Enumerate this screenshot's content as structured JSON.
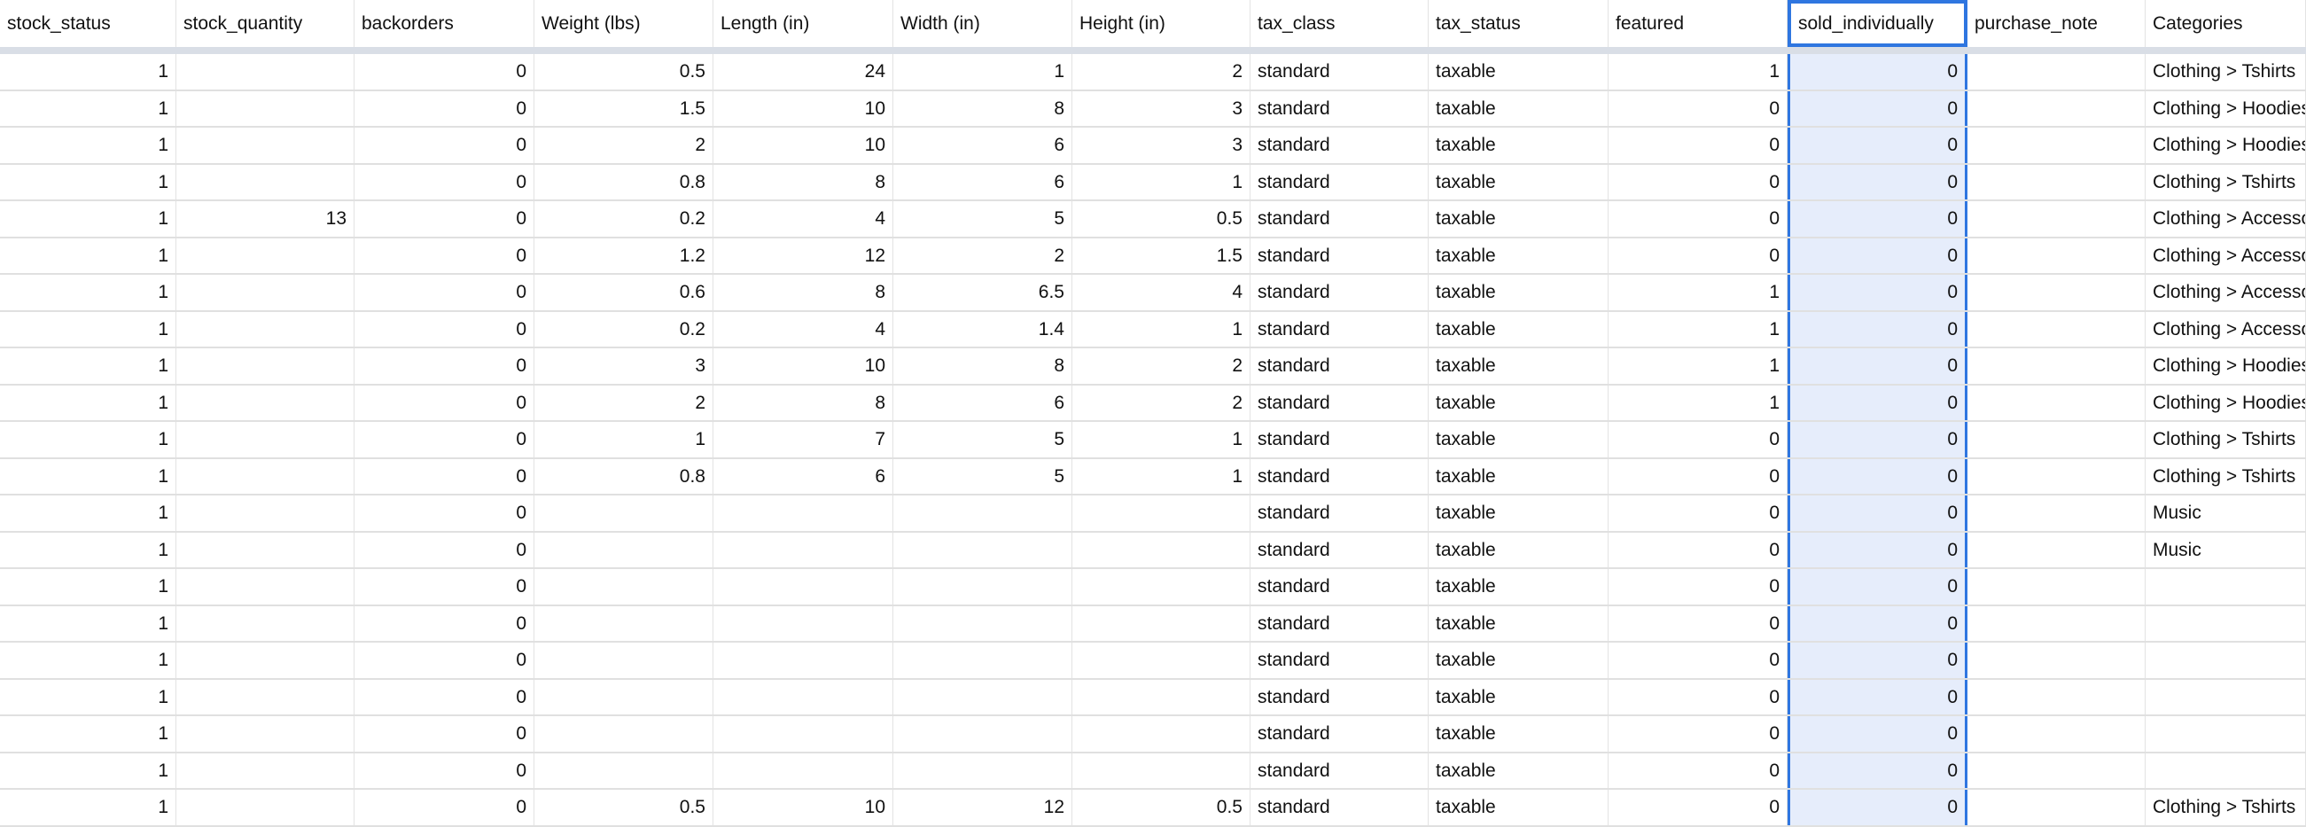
{
  "columns": [
    "stock_status",
    "stock_quantity",
    "backorders",
    "Weight (lbs)",
    "Length (in)",
    "Width (in)",
    "Height (in)",
    "tax_class",
    "tax_status",
    "featured",
    "sold_individually",
    "purchase_note",
    "Categories"
  ],
  "selected_column": "sold_individually",
  "accent_color": "#2f76e0",
  "rows": [
    [
      "1",
      "",
      "0",
      "0.5",
      "24",
      "1",
      "2",
      "standard",
      "taxable",
      "1",
      "0",
      "",
      "Clothing > Tshirts"
    ],
    [
      "1",
      "",
      "0",
      "1.5",
      "10",
      "8",
      "3",
      "standard",
      "taxable",
      "0",
      "0",
      "",
      "Clothing > Hoodies"
    ],
    [
      "1",
      "",
      "0",
      "2",
      "10",
      "6",
      "3",
      "standard",
      "taxable",
      "0",
      "0",
      "",
      "Clothing > Hoodies"
    ],
    [
      "1",
      "",
      "0",
      "0.8",
      "8",
      "6",
      "1",
      "standard",
      "taxable",
      "0",
      "0",
      "",
      "Clothing > Tshirts"
    ],
    [
      "1",
      "13",
      "0",
      "0.2",
      "4",
      "5",
      "0.5",
      "standard",
      "taxable",
      "0",
      "0",
      "",
      "Clothing > Accessories"
    ],
    [
      "1",
      "",
      "0",
      "1.2",
      "12",
      "2",
      "1.5",
      "standard",
      "taxable",
      "0",
      "0",
      "",
      "Clothing > Accessories"
    ],
    [
      "1",
      "",
      "0",
      "0.6",
      "8",
      "6.5",
      "4",
      "standard",
      "taxable",
      "1",
      "0",
      "",
      "Clothing > Accessories"
    ],
    [
      "1",
      "",
      "0",
      "0.2",
      "4",
      "1.4",
      "1",
      "standard",
      "taxable",
      "1",
      "0",
      "",
      "Clothing > Accessories"
    ],
    [
      "1",
      "",
      "0",
      "3",
      "10",
      "8",
      "2",
      "standard",
      "taxable",
      "1",
      "0",
      "",
      "Clothing > Hoodies"
    ],
    [
      "1",
      "",
      "0",
      "2",
      "8",
      "6",
      "2",
      "standard",
      "taxable",
      "1",
      "0",
      "",
      "Clothing > Hoodies"
    ],
    [
      "1",
      "",
      "0",
      "1",
      "7",
      "5",
      "1",
      "standard",
      "taxable",
      "0",
      "0",
      "",
      "Clothing > Tshirts"
    ],
    [
      "1",
      "",
      "0",
      "0.8",
      "6",
      "5",
      "1",
      "standard",
      "taxable",
      "0",
      "0",
      "",
      "Clothing > Tshirts"
    ],
    [
      "1",
      "",
      "0",
      "",
      "",
      "",
      "",
      "standard",
      "taxable",
      "0",
      "0",
      "",
      "Music"
    ],
    [
      "1",
      "",
      "0",
      "",
      "",
      "",
      "",
      "standard",
      "taxable",
      "0",
      "0",
      "",
      "Music"
    ],
    [
      "1",
      "",
      "0",
      "",
      "",
      "",
      "",
      "standard",
      "taxable",
      "0",
      "0",
      "",
      ""
    ],
    [
      "1",
      "",
      "0",
      "",
      "",
      "",
      "",
      "standard",
      "taxable",
      "0",
      "0",
      "",
      ""
    ],
    [
      "1",
      "",
      "0",
      "",
      "",
      "",
      "",
      "standard",
      "taxable",
      "0",
      "0",
      "",
      ""
    ],
    [
      "1",
      "",
      "0",
      "",
      "",
      "",
      "",
      "standard",
      "taxable",
      "0",
      "0",
      "",
      ""
    ],
    [
      "1",
      "",
      "0",
      "",
      "",
      "",
      "",
      "standard",
      "taxable",
      "0",
      "0",
      "",
      ""
    ],
    [
      "1",
      "",
      "0",
      "",
      "",
      "",
      "",
      "standard",
      "taxable",
      "0",
      "0",
      "",
      ""
    ],
    [
      "1",
      "",
      "0",
      "0.5",
      "10",
      "12",
      "0.5",
      "standard",
      "taxable",
      "0",
      "0",
      "",
      "Clothing > Tshirts"
    ]
  ]
}
